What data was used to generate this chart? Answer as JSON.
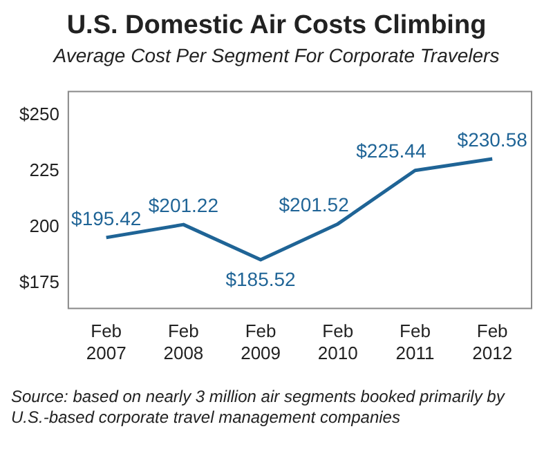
{
  "chart_data": {
    "type": "line",
    "title": "U.S. Domestic Air Costs Climbing",
    "subtitle": "Average Cost Per Segment For Corporate Travelers",
    "categories": [
      "Feb 2007",
      "Feb 2008",
      "Feb 2009",
      "Feb 2010",
      "Feb 2011",
      "Feb 2012"
    ],
    "series": [
      {
        "color": "#1f6496",
        "values": [
          195.42,
          201.22,
          185.52,
          201.52,
          225.44,
          230.58
        ],
        "value_labels": [
          "$195.42",
          "$201.22",
          "$185.52",
          "$201.52",
          "$225.44",
          "$230.58"
        ]
      }
    ],
    "ylim": [
      164,
      261
    ],
    "yticks": [
      {
        "value": 175,
        "label": "$175"
      },
      200,
      225,
      {
        "value": 250,
        "label": "$250"
      }
    ],
    "grid": false,
    "legend": false,
    "marker": "none",
    "line_style": "solid",
    "annotations": [
      "Source: based on nearly 3 million air segments booked primarily by U.S.-based corporate travel management companies"
    ]
  }
}
